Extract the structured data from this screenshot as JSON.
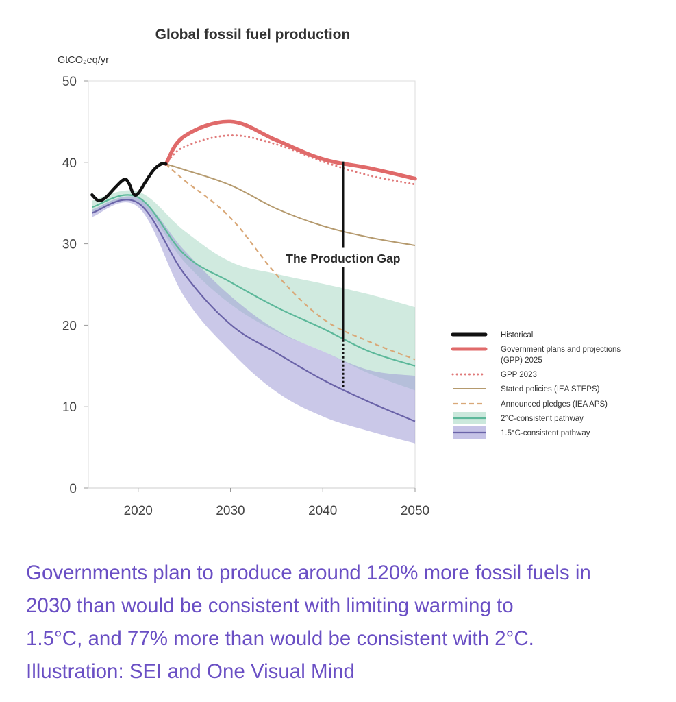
{
  "chart_data": {
    "type": "line",
    "title": "Global fossil fuel production",
    "ylabel": "GtCO₂eq/yr",
    "ylim": [
      0,
      50
    ],
    "xlim": [
      2015,
      2050
    ],
    "yticks": [
      0,
      10,
      20,
      30,
      40,
      50
    ],
    "xticks": [
      2020,
      2030,
      2040,
      2050
    ],
    "grid": false,
    "legend_position": "right",
    "colors": {
      "historical": "#111111",
      "gpp2025": "#e06a6a",
      "gpp2023": "#e07a7a",
      "steps": "#b59a6e",
      "aps": "#d9a878",
      "two_c": "#5cb89a",
      "two_c_band": "#a9d8c4",
      "one_five_c": "#6a63a8",
      "one_five_c_band": "#9e9ad6"
    },
    "series": [
      {
        "key": "historical",
        "name": "Historical",
        "style": "solid-thick",
        "points": [
          [
            2015,
            36
          ],
          [
            2015.7,
            35.3
          ],
          [
            2016.5,
            35.7
          ],
          [
            2017.5,
            36.9
          ],
          [
            2018.5,
            37.9
          ],
          [
            2019,
            37.4
          ],
          [
            2019.5,
            36.1
          ],
          [
            2020,
            36.2
          ],
          [
            2020.8,
            37.6
          ],
          [
            2021.7,
            39.1
          ],
          [
            2022.5,
            39.8
          ],
          [
            2023,
            39.8
          ]
        ]
      },
      {
        "key": "gpp2025",
        "name": "Government plans and projections (GPP) 2025",
        "style": "solid-thick",
        "points": [
          [
            2023,
            39.8
          ],
          [
            2025,
            43.2
          ],
          [
            2030,
            45
          ],
          [
            2035,
            42.7
          ],
          [
            2040,
            40.4
          ],
          [
            2045,
            39.3
          ],
          [
            2050,
            38
          ]
        ]
      },
      {
        "key": "gpp2023",
        "name": "GPP 2023",
        "style": "dotted",
        "points": [
          [
            2023,
            39.8
          ],
          [
            2025,
            41.9
          ],
          [
            2030,
            43.3
          ],
          [
            2035,
            42.2
          ],
          [
            2040,
            40.1
          ],
          [
            2045,
            38.4
          ],
          [
            2050,
            37.3
          ]
        ]
      },
      {
        "key": "steps",
        "name": "Stated policies (IEA STEPS)",
        "style": "solid-thin",
        "points": [
          [
            2023,
            39.8
          ],
          [
            2025,
            39.1
          ],
          [
            2030,
            37.2
          ],
          [
            2035,
            34.3
          ],
          [
            2040,
            32.2
          ],
          [
            2045,
            30.8
          ],
          [
            2050,
            29.8
          ]
        ]
      },
      {
        "key": "aps",
        "name": "Announced pledges (IEA APS)",
        "style": "dashed",
        "points": [
          [
            2023,
            39.8
          ],
          [
            2025,
            37.8
          ],
          [
            2030,
            33.2
          ],
          [
            2035,
            26.2
          ],
          [
            2040,
            20.8
          ],
          [
            2045,
            18
          ],
          [
            2050,
            15.8
          ]
        ]
      },
      {
        "key": "two_c",
        "name": "2°C-consistent pathway",
        "style": "solid",
        "points": [
          [
            2015,
            34.5
          ],
          [
            2020,
            35.7
          ],
          [
            2025,
            28.7
          ],
          [
            2030,
            25.3
          ],
          [
            2035,
            22.2
          ],
          [
            2040,
            19.6
          ],
          [
            2045,
            16.8
          ],
          [
            2050,
            15
          ]
        ],
        "band_upper": [
          [
            2015,
            35.3
          ],
          [
            2020,
            36.4
          ],
          [
            2025,
            31.6
          ],
          [
            2030,
            27.8
          ],
          [
            2035,
            26.3
          ],
          [
            2040,
            25.1
          ],
          [
            2045,
            23.8
          ],
          [
            2050,
            22.2
          ]
        ],
        "band_lower": [
          [
            2015,
            33.8
          ],
          [
            2020,
            35
          ],
          [
            2025,
            27.8
          ],
          [
            2030,
            22.6
          ],
          [
            2035,
            19.2
          ],
          [
            2040,
            16.8
          ],
          [
            2045,
            14.1
          ],
          [
            2050,
            12
          ]
        ]
      },
      {
        "key": "one_five_c",
        "name": "1.5°C-consistent pathway",
        "style": "solid",
        "points": [
          [
            2015,
            33.8
          ],
          [
            2020,
            35
          ],
          [
            2025,
            26.3
          ],
          [
            2030,
            20.1
          ],
          [
            2035,
            16.6
          ],
          [
            2040,
            13.3
          ],
          [
            2045,
            10.6
          ],
          [
            2050,
            8.2
          ]
        ],
        "band_upper": [
          [
            2015,
            34.2
          ],
          [
            2020,
            35.6
          ],
          [
            2025,
            29.2
          ],
          [
            2030,
            23.6
          ],
          [
            2035,
            19.4
          ],
          [
            2040,
            16.8
          ],
          [
            2045,
            14.5
          ],
          [
            2050,
            13.8
          ]
        ],
        "band_lower": [
          [
            2015,
            33.3
          ],
          [
            2020,
            34.5
          ],
          [
            2025,
            23.5
          ],
          [
            2030,
            16.8
          ],
          [
            2035,
            11.8
          ],
          [
            2040,
            8.8
          ],
          [
            2045,
            7
          ],
          [
            2050,
            5.5
          ]
        ]
      }
    ],
    "annotation": {
      "text": "The Production Gap",
      "x": 2042.2,
      "y_top": 40.1,
      "y_solid_bottom": 18.2,
      "y_bottom": 12.3
    }
  },
  "caption": [
    "Governments plan to produce around 120% more fossil fuels in",
    "2030 than would be consistent with limiting warming to",
    "1.5°C, and 77% more than would be consistent with 2°C.",
    "Illustration: SEI and One Visual Mind"
  ]
}
